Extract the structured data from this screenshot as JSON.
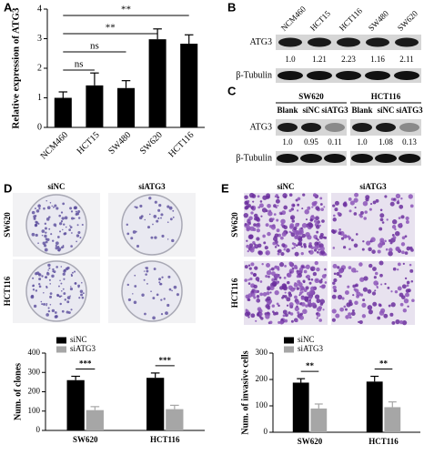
{
  "panel_labels": [
    "A",
    "B",
    "C",
    "D",
    "E"
  ],
  "chart_data": [
    {
      "type": "bar",
      "y_label": "Relative expression of ATG3",
      "categories": [
        "NCM460",
        "HCT15",
        "SW480",
        "SW620",
        "HCT116"
      ],
      "values": [
        1.0,
        1.42,
        1.33,
        2.98,
        2.83
      ],
      "errors": [
        0.2,
        0.42,
        0.25,
        0.35,
        0.3
      ],
      "color": "#000000",
      "ylim": [
        0,
        4
      ],
      "yticks": [
        0,
        1,
        2,
        3,
        4
      ],
      "comparisons": [
        {
          "label": "ns",
          "pair": [
            0,
            1
          ]
        },
        {
          "label": "ns",
          "pair": [
            0,
            2
          ]
        },
        {
          "label": "**",
          "pair": [
            0,
            3
          ]
        },
        {
          "label": "**",
          "pair": [
            0,
            4
          ]
        }
      ]
    },
    {
      "type": "bar",
      "y_label": "Num. of clones",
      "categories": [
        "SW620",
        "HCT116"
      ],
      "series": [
        {
          "name": "siNC",
          "color": "#000000",
          "values": [
            260,
            272
          ],
          "errors": [
            20,
            25
          ]
        },
        {
          "name": "siATG3",
          "color": "#a6a6a6",
          "values": [
            105,
            110
          ],
          "errors": [
            18,
            20
          ]
        }
      ],
      "ylim": [
        0,
        400
      ],
      "yticks": [
        0,
        100,
        200,
        300,
        400
      ],
      "significance": [
        "***",
        "***"
      ],
      "legend": "upper left"
    },
    {
      "type": "bar",
      "y_label": "Num. of invasive cells",
      "categories": [
        "SW620",
        "HCT116"
      ],
      "series": [
        {
          "name": "siNC",
          "color": "#000000",
          "values": [
            188,
            192
          ],
          "errors": [
            15,
            20
          ]
        },
        {
          "name": "siATG3",
          "color": "#a6a6a6",
          "values": [
            90,
            95
          ],
          "errors": [
            17,
            20
          ]
        }
      ],
      "ylim": [
        0,
        300
      ],
      "yticks": [
        0,
        100,
        200,
        300
      ],
      "significance": [
        "**",
        "**"
      ],
      "legend": "upper left"
    }
  ],
  "blot_b": {
    "lanes": [
      "NCM460",
      "HCT15",
      "HCT116",
      "SW480",
      "SW620"
    ],
    "rows": [
      "ATG3",
      "β-Tubulin"
    ],
    "quantification": [
      "1.0",
      "1.21",
      "2.23",
      "1.16",
      "2.11"
    ]
  },
  "blot_c": {
    "rows": [
      "ATG3",
      "β-Tubulin"
    ],
    "groups": [
      {
        "name": "SW620",
        "lanes": [
          "Blank",
          "siNC",
          "siATG3"
        ],
        "quantification": [
          "1.0",
          "0.95",
          "0.11"
        ]
      },
      {
        "name": "HCT116",
        "lanes": [
          "Blank",
          "siNC",
          "siATG3"
        ],
        "quantification": [
          "1.0",
          "1.08",
          "0.13"
        ]
      }
    ]
  },
  "images_d": {
    "columns": [
      "siNC",
      "siATG3"
    ],
    "rows": [
      "SW620",
      "HCT116"
    ]
  },
  "images_e": {
    "columns": [
      "siNC",
      "siATG3"
    ],
    "rows": [
      "SW620",
      "HCT116"
    ]
  }
}
